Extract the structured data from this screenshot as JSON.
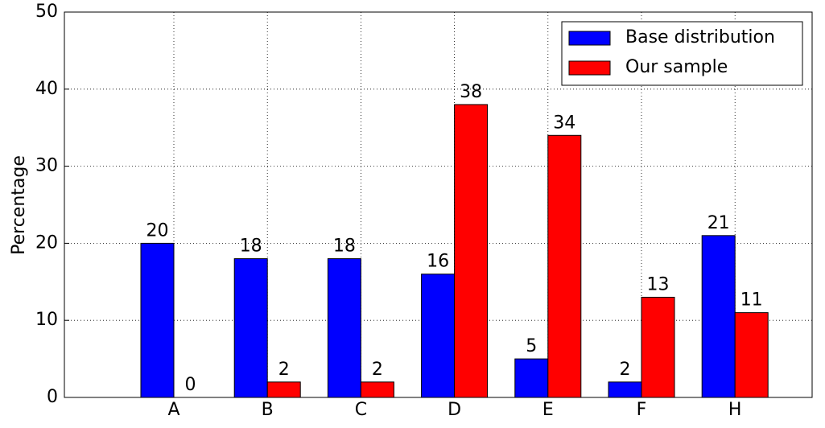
{
  "chart_data": {
    "type": "bar",
    "y_label": "Percentage",
    "categories": [
      "A",
      "B",
      "C",
      "D",
      "E",
      "F",
      "H"
    ],
    "series": [
      {
        "name": "Base distribution",
        "color": "#0000ff",
        "values": [
          20,
          18,
          18,
          16,
          5,
          2,
          21
        ]
      },
      {
        "name": "Our sample",
        "color": "#ff0000",
        "values": [
          0,
          2,
          2,
          38,
          34,
          13,
          11
        ]
      }
    ],
    "ylim": [
      0,
      50
    ],
    "yticks": [
      0,
      10,
      20,
      30,
      40,
      50
    ],
    "grid": true,
    "legend": "upper right"
  }
}
